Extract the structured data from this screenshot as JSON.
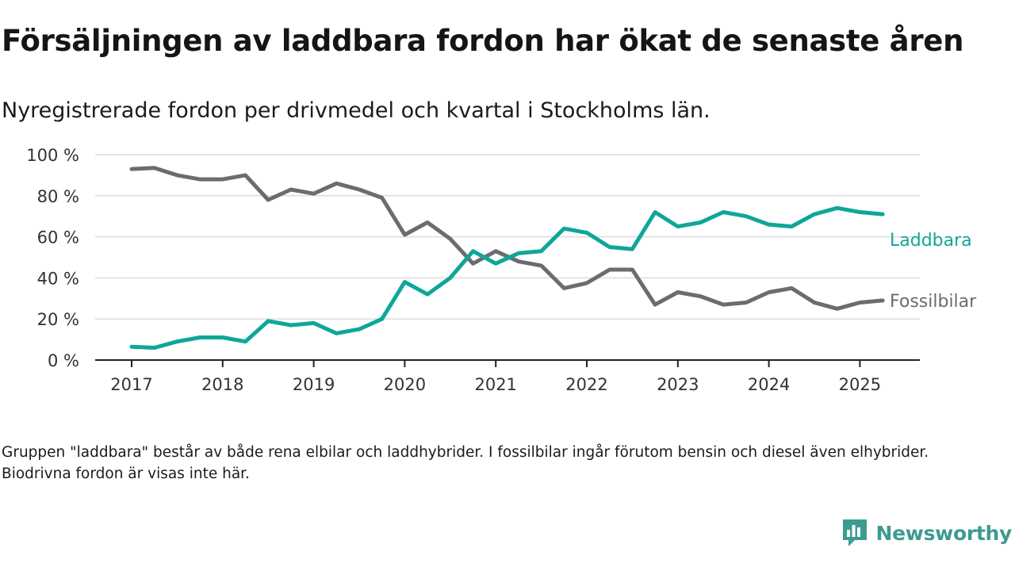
{
  "colors": {
    "laddbara": "#0fa69a",
    "fossilbilar": "#6c6b72",
    "grid": "#dcdcdc",
    "axis": "#222222",
    "brand": "#3d9b90"
  },
  "chart_data": {
    "type": "line",
    "title": "Försäljningen av laddbara fordon har ökat de senaste åren",
    "subtitle": "Nyregistrerade fordon per drivmedel och kvartal i Stockholms län.",
    "x_quarters": [
      "2017 K1",
      "2017 K2",
      "2017 K3",
      "2017 K4",
      "2018 K1",
      "2018 K2",
      "2018 K3",
      "2018 K4",
      "2019 K1",
      "2019 K2",
      "2019 K3",
      "2019 K4",
      "2020 K1",
      "2020 K2",
      "2020 K3",
      "2020 K4",
      "2021 K1",
      "2021 K2",
      "2021 K3",
      "2021 K4",
      "2022 K1",
      "2022 K2",
      "2022 K3",
      "2022 K4",
      "2023 K1",
      "2023 K2",
      "2023 K3",
      "2023 K4",
      "2024 K1",
      "2024 K2",
      "2024 K3",
      "2024 K4",
      "2025 K1",
      "2025 K2"
    ],
    "x_tick_labels": [
      "2017",
      "2018",
      "2019",
      "2020",
      "2021",
      "2022",
      "2023",
      "2024",
      "2025"
    ],
    "y_tick_values": [
      0,
      20,
      40,
      60,
      80,
      100
    ],
    "y_tick_labels": [
      "0 %",
      "20 %",
      "40 %",
      "60 %",
      "80 %",
      "100 %"
    ],
    "ylim": [
      0,
      100
    ],
    "grid": true,
    "legend": "direct labels at right end of lines",
    "series": [
      {
        "name": "Laddbara",
        "values": [
          6.5,
          6,
          9,
          11,
          11,
          9,
          19,
          17,
          18,
          13,
          15,
          20,
          38,
          32,
          40,
          53,
          47,
          52,
          53,
          64,
          62,
          55,
          54,
          72,
          65,
          67,
          72,
          70,
          66,
          65,
          71,
          74,
          72,
          71
        ]
      },
      {
        "name": "Fossilbilar",
        "values": [
          93,
          93.5,
          90,
          88,
          88,
          90,
          78,
          83,
          81,
          86,
          83,
          79,
          61,
          67,
          59,
          47,
          53,
          48,
          46,
          35,
          37.5,
          44,
          44,
          27,
          33,
          31,
          27,
          28,
          33,
          35,
          28,
          25,
          28,
          29
        ]
      }
    ]
  },
  "footnote": "Gruppen \"laddbara\" består av både rena elbilar och laddhybrider. I fossilbilar ingår förutom bensin och diesel även elhybrider. Biodrivna fordon är visas inte här.",
  "brand": {
    "name": "Newsworthy",
    "icon": "bar-chart-speech-bubble-icon"
  }
}
